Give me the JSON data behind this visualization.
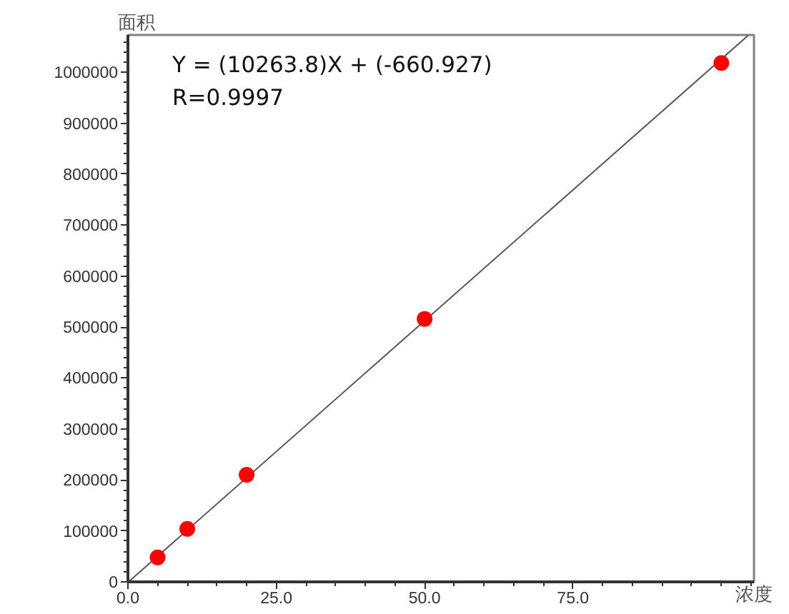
{
  "chart_data": {
    "type": "scatter",
    "xlabel": "浓度",
    "ylabel": "面积",
    "annotations": [
      "Y = (10263.8)X + (-660.927)",
      "R=0.9997"
    ],
    "x": [
      5,
      10,
      20,
      50,
      100
    ],
    "series": [
      {
        "type": "line",
        "x": [
          0.1,
          104.5
        ],
        "values": [
          0,
          1072000
        ],
        "color": "#555555",
        "marker": "none"
      },
      {
        "color": "#ff0000",
        "marker": "circle",
        "values": [
          48000,
          104000,
          210000,
          516000,
          1018000
        ]
      }
    ],
    "xlim": [
      0,
      105.5
    ],
    "ylim": [
      0,
      1073000
    ],
    "xticks": [
      {
        "value": 0,
        "label": "0.0"
      },
      {
        "value": 25,
        "label": "25.0"
      },
      {
        "value": 50,
        "label": "50.0"
      },
      {
        "value": 75,
        "label": "75.0"
      }
    ],
    "yticks": [
      0,
      100000,
      200000,
      300000,
      400000,
      500000,
      600000,
      700000,
      800000,
      900000,
      1000000
    ],
    "grid": false
  }
}
